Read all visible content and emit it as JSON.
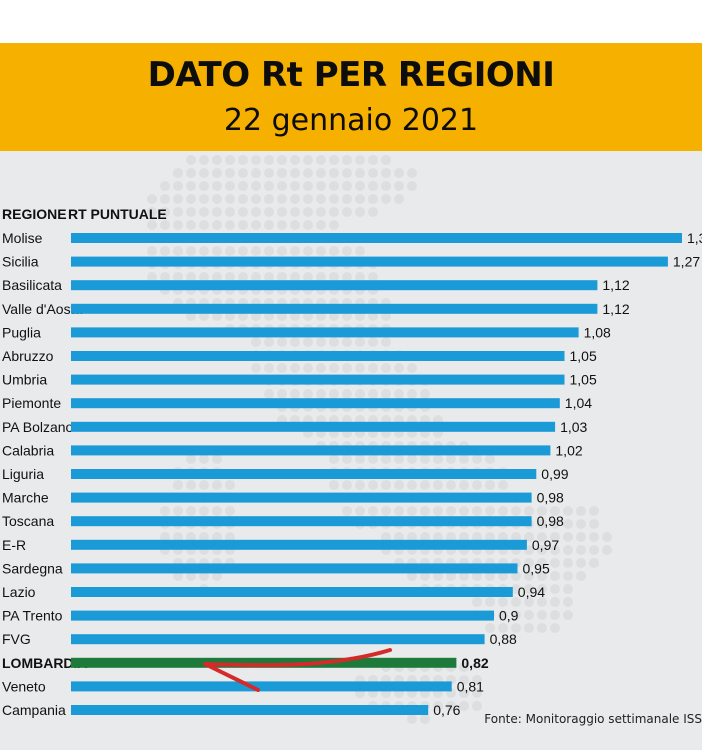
{
  "header": {
    "title": "DATO Rt PER REGIONI",
    "subtitle": "22 gennaio 2021"
  },
  "source": "Fonte: Monitoraggio settimanale ISS",
  "colors": {
    "banner": "#f6b000",
    "bar": "#1a9ad6",
    "highlight_bar": "#1e7a3a",
    "arrow": "#d42a2a",
    "background": "#e9eaeb"
  },
  "chart_data": {
    "type": "bar",
    "orientation": "horizontal",
    "column_headers": [
      "REGIONE",
      "RT PUNTUALE"
    ],
    "categories": [
      "Molise",
      "Sicilia",
      "Basilicata",
      "Valle d'Aosta",
      "Puglia",
      "Abruzzo",
      "Umbria",
      "Piemonte",
      "PA Bolzano",
      "Calabria",
      "Liguria",
      "Marche",
      "Toscana",
      "E-R",
      "Sardegna",
      "Lazio",
      "PA Trento",
      "FVG",
      "LOMBARDIA",
      "Veneto",
      "Campania"
    ],
    "values": [
      1.3,
      1.27,
      1.12,
      1.12,
      1.08,
      1.05,
      1.05,
      1.04,
      1.03,
      1.02,
      0.99,
      0.98,
      0.98,
      0.97,
      0.95,
      0.94,
      0.9,
      0.88,
      0.82,
      0.81,
      0.76
    ],
    "value_labels": [
      "1,3",
      "1,27",
      "1,12",
      "1,12",
      "1,08",
      "1,05",
      "1,05",
      "1,04",
      "1,03",
      "1,02",
      "0,99",
      "0,98",
      "0,98",
      "0,97",
      "0,95",
      "0,94",
      "0,9",
      "0,88",
      "0,82",
      "0,81",
      "0,76"
    ],
    "highlight": "LOMBARDIA",
    "annotation": "red arrow pointing to LOMBARDIA",
    "grid": false
  }
}
